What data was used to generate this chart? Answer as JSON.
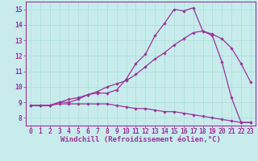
{
  "background_color": "#c8ecec",
  "line_color": "#993399",
  "grid_color": "#aadddd",
  "xlabel": "Windchill (Refroidissement éolien,°C)",
  "xlim": [
    -0.5,
    23.5
  ],
  "ylim": [
    7.5,
    15.5
  ],
  "yticks": [
    8,
    9,
    10,
    11,
    12,
    13,
    14,
    15
  ],
  "xticks": [
    0,
    1,
    2,
    3,
    4,
    5,
    6,
    7,
    8,
    9,
    10,
    11,
    12,
    13,
    14,
    15,
    16,
    17,
    18,
    19,
    20,
    21,
    22,
    23
  ],
  "line1_x": [
    0,
    1,
    2,
    3,
    4,
    5,
    6,
    7,
    8,
    9,
    10,
    11,
    12,
    13,
    14,
    15,
    16,
    17,
    18,
    19,
    20,
    21,
    22,
    23
  ],
  "line1_y": [
    8.8,
    8.8,
    8.8,
    9.0,
    9.0,
    9.2,
    9.5,
    9.6,
    9.6,
    9.8,
    10.5,
    11.5,
    12.1,
    13.3,
    14.1,
    15.0,
    14.9,
    15.1,
    13.6,
    13.3,
    11.6,
    9.3,
    7.7,
    7.7
  ],
  "line2_x": [
    0,
    1,
    2,
    3,
    4,
    5,
    6,
    7,
    8,
    9,
    10,
    11,
    12,
    13,
    14,
    15,
    16,
    17,
    18,
    19,
    20,
    21,
    22,
    23
  ],
  "line2_y": [
    8.8,
    8.8,
    8.8,
    9.0,
    9.2,
    9.3,
    9.5,
    9.7,
    10.0,
    10.2,
    10.4,
    10.8,
    11.3,
    11.8,
    12.2,
    12.7,
    13.1,
    13.5,
    13.6,
    13.4,
    13.1,
    12.5,
    11.5,
    10.3
  ],
  "line3_x": [
    0,
    1,
    2,
    3,
    4,
    5,
    6,
    7,
    8,
    9,
    10,
    11,
    12,
    13,
    14,
    15,
    16,
    17,
    18,
    19,
    20,
    21,
    22,
    23
  ],
  "line3_y": [
    8.8,
    8.8,
    8.8,
    8.9,
    8.9,
    8.9,
    8.9,
    8.9,
    8.9,
    8.8,
    8.7,
    8.6,
    8.6,
    8.5,
    8.4,
    8.4,
    8.3,
    8.2,
    8.1,
    8.0,
    7.9,
    7.8,
    7.7,
    7.7
  ],
  "marker": "D",
  "marker_size": 1.8,
  "line_width": 0.9,
  "xlabel_fontsize": 6.5,
  "tick_fontsize": 5.8,
  "tick_color": "#993399",
  "label_color": "#993399",
  "spine_color": "#993399"
}
